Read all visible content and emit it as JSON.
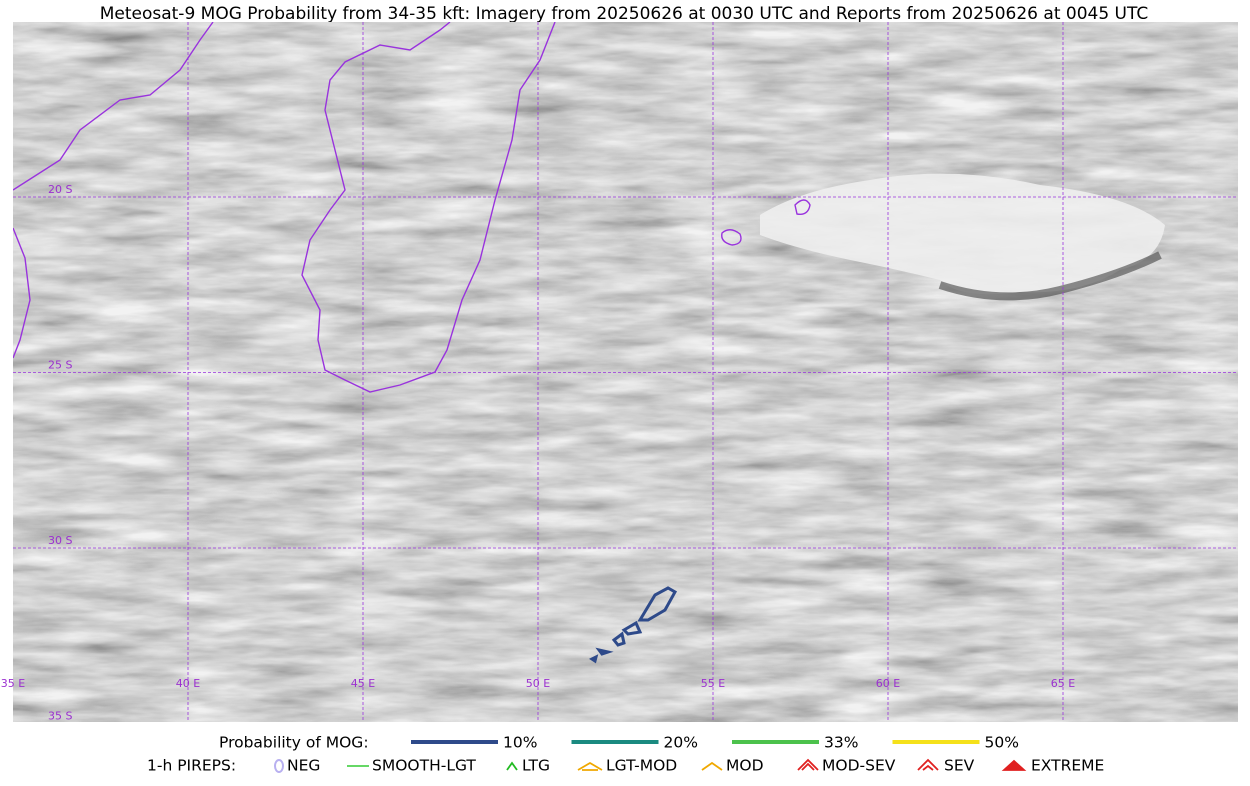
{
  "title": "Meteosat-9 MOG Probability from 34-35 kft: Imagery from 20250626 at 0030 UTC and Reports from 20250626 at 0045 UTC",
  "map": {
    "lon_labels": [
      "35 E",
      "40 E",
      "45 E",
      "50 E",
      "55 E",
      "60 E",
      "65 E"
    ],
    "lat_labels": [
      "20 S",
      "25 S",
      "30 S",
      "35 S"
    ]
  },
  "legend": {
    "probability": {
      "label": "Probability of MOG:",
      "items": [
        {
          "label": "10%",
          "color": "#2e4a8a"
        },
        {
          "label": "20%",
          "color": "#1a8a80"
        },
        {
          "label": "33%",
          "color": "#4cc24c"
        },
        {
          "label": "50%",
          "color": "#f5e11a"
        }
      ]
    },
    "pireps": {
      "label": "1-h PIREPS:",
      "items": [
        {
          "label": "NEG",
          "color": "#b8b0f0"
        },
        {
          "label": "SMOOTH-LGT",
          "color": "#33cc33"
        },
        {
          "label": "LTG",
          "color": "#22bb22"
        },
        {
          "label": "LGT-MOD",
          "color": "#f0a800"
        },
        {
          "label": "MOD",
          "color": "#f0a800"
        },
        {
          "label": "MOD-SEV",
          "color": "#e02020"
        },
        {
          "label": "SEV",
          "color": "#e02020"
        },
        {
          "label": "EXTREME",
          "color": "#e02020"
        }
      ]
    }
  }
}
